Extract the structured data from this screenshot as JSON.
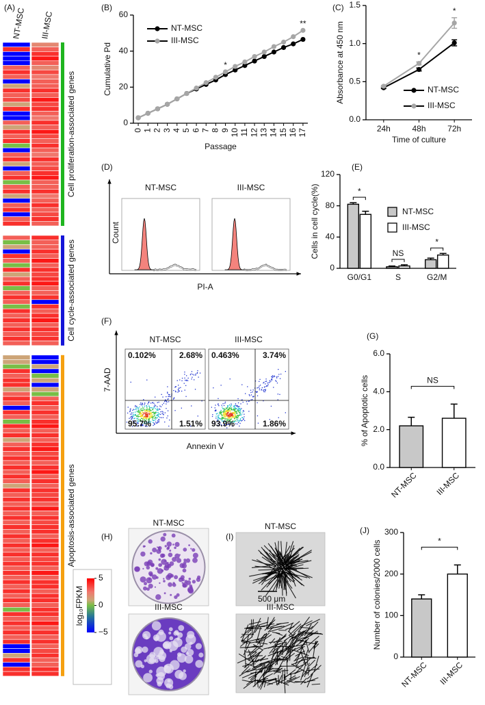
{
  "chart_data": [
    {
      "type": "heatmap",
      "label": "(A)",
      "columns": [
        "NT-MSC",
        "III-MSC"
      ],
      "zlim": [
        -5,
        5
      ],
      "colorbar_title": "log₁₀FPKM",
      "colorbar_ticks": [
        5,
        0,
        {
          "value": -5,
          "label": "−5"
        }
      ],
      "groups": [
        {
          "name": "Cell proliferation-associated genes",
          "color": "#1fb51f",
          "rows": [
            [
              -5,
              2
            ],
            [
              4,
              3
            ],
            [
              -5,
              4
            ],
            [
              -5,
              4.5
            ],
            [
              -5,
              3
            ],
            [
              3,
              2
            ],
            [
              4,
              3.5
            ],
            [
              3,
              2.5
            ],
            [
              -5,
              3
            ],
            [
              1,
              3
            ],
            [
              4,
              4
            ],
            [
              3,
              3
            ],
            [
              3.5,
              4.5
            ],
            [
              1,
              3.5
            ],
            [
              4,
              4
            ],
            [
              -5,
              3
            ],
            [
              -5,
              2.5
            ],
            [
              3,
              4
            ],
            [
              1,
              3
            ],
            [
              4,
              4.5
            ],
            [
              3,
              3.5
            ],
            [
              4,
              3
            ],
            [
              0,
              4
            ],
            [
              -5,
              3
            ],
            [
              3,
              2.5
            ],
            [
              4,
              4
            ],
            [
              1,
              3
            ],
            [
              -5,
              3.5
            ],
            [
              3,
              4
            ],
            [
              4,
              4.5
            ],
            [
              0,
              3
            ],
            [
              3,
              3
            ],
            [
              4,
              4
            ],
            [
              1,
              2.5
            ],
            [
              -5,
              3
            ],
            [
              3,
              4
            ],
            [
              4,
              3
            ],
            [
              -5,
              3.5
            ],
            [
              3,
              4
            ],
            [
              4,
              3
            ]
          ]
        },
        {
          "name": "Cell cycle-associated genes",
          "color": "#1414d8",
          "rows": [
            [
              3,
              4
            ],
            [
              0,
              3
            ],
            [
              1,
              3
            ],
            [
              -5,
              4
            ],
            [
              4,
              3
            ],
            [
              3,
              4.5
            ],
            [
              0,
              3
            ],
            [
              4,
              4
            ],
            [
              1,
              3.5
            ],
            [
              3,
              4
            ],
            [
              4,
              4.5
            ],
            [
              0,
              3
            ],
            [
              3,
              3
            ],
            [
              4,
              4
            ],
            [
              3,
              -5
            ],
            [
              0,
              4
            ],
            [
              4,
              3
            ],
            [
              3,
              4
            ],
            [
              4,
              4.5
            ],
            [
              3,
              3
            ],
            [
              4,
              4
            ],
            [
              3,
              3.5
            ],
            [
              4,
              4
            ],
            [
              3,
              3
            ]
          ]
        },
        {
          "name": "Apoptosis-associated genes",
          "color": "#f5a010",
          "rows": [
            [
              1,
              -5
            ],
            [
              1,
              -5
            ],
            [
              0,
              1
            ],
            [
              4,
              -5
            ],
            [
              3,
              0
            ],
            [
              4,
              1
            ],
            [
              4,
              -5
            ],
            [
              1,
              1
            ],
            [
              3,
              0
            ],
            [
              4,
              3
            ],
            [
              3,
              4
            ],
            [
              -5,
              3
            ],
            [
              4,
              4
            ],
            [
              3,
              3
            ],
            [
              0,
              4
            ],
            [
              4,
              4.5
            ],
            [
              3,
              3
            ],
            [
              4,
              4
            ],
            [
              1,
              3
            ],
            [
              3,
              4
            ],
            [
              4,
              4.5
            ],
            [
              3,
              3.5
            ],
            [
              4,
              4
            ],
            [
              3,
              3
            ],
            [
              4,
              4
            ],
            [
              3,
              4.5
            ],
            [
              4,
              3
            ],
            [
              3,
              4
            ],
            [
              1,
              3
            ],
            [
              4,
              4
            ],
            [
              3,
              3.5
            ],
            [
              4,
              4
            ],
            [
              3,
              3
            ],
            [
              4,
              4.5
            ],
            [
              3,
              3
            ],
            [
              4,
              4
            ],
            [
              3,
              3.5
            ],
            [
              4,
              4
            ],
            [
              3,
              4
            ],
            [
              4,
              3
            ],
            [
              3,
              4
            ],
            [
              4,
              4.5
            ],
            [
              3,
              3
            ],
            [
              4,
              4
            ],
            [
              3,
              3.5
            ],
            [
              4,
              4
            ],
            [
              3,
              3
            ],
            [
              4,
              4.5
            ],
            [
              3,
              3
            ],
            [
              4,
              4
            ],
            [
              3,
              4
            ],
            [
              4,
              3
            ],
            [
              3,
              4
            ],
            [
              4,
              4
            ],
            [
              3,
              3
            ],
            [
              0,
              4
            ],
            [
              4,
              4
            ],
            [
              3,
              3
            ],
            [
              4,
              4.5
            ],
            [
              3,
              3
            ],
            [
              4,
              4
            ],
            [
              3,
              3
            ],
            [
              4,
              4
            ],
            [
              -5,
              3
            ],
            [
              -5,
              3.5
            ],
            [
              1,
              4
            ],
            [
              4,
              3
            ],
            [
              -5,
              3
            ],
            [
              4,
              4
            ],
            [
              4,
              4
            ]
          ]
        }
      ]
    },
    {
      "type": "line",
      "label": "(B)",
      "ylabel": "Cumulative Pd",
      "xlabel": "Passage",
      "x": [
        0,
        1,
        2,
        3,
        4,
        5,
        6,
        7,
        8,
        9,
        10,
        11,
        12,
        13,
        14,
        15,
        16,
        17
      ],
      "xlim": [
        -0.5,
        17.5
      ],
      "xticks": [
        0,
        1,
        2,
        3,
        4,
        5,
        6,
        7,
        8,
        9,
        10,
        11,
        12,
        13,
        14,
        15,
        16,
        17
      ],
      "ylim": [
        0,
        60
      ],
      "yticks": [
        0,
        20,
        40,
        60
      ],
      "legend": "upper left",
      "series": [
        {
          "name": "NT-MSC",
          "color": "#000000",
          "values": [
            3,
            5.5,
            8,
            10.5,
            13.5,
            16.5,
            19,
            21.5,
            24,
            27,
            29.5,
            32,
            34.5,
            37,
            39.5,
            42,
            44,
            46.5
          ]
        },
        {
          "name": "III-MSC",
          "color": "#a6a6a6",
          "values": [
            3,
            5.5,
            8,
            10.5,
            13.5,
            16.5,
            19.5,
            22.5,
            25.5,
            28.5,
            31.5,
            34,
            37,
            39.5,
            42.5,
            45,
            48,
            51.5
          ]
        }
      ],
      "annotations": [
        {
          "text": "*",
          "x": 9
        },
        {
          "text": "**",
          "x": 17
        }
      ]
    },
    {
      "type": "line",
      "label": "(C)",
      "ylabel": "Absorbance at 450 nm",
      "xlabel": "Time of culture",
      "categories": [
        "24h",
        "48h",
        "72h"
      ],
      "ylim": [
        0,
        1.5
      ],
      "yticks": [
        {
          "value": 0,
          "label": "0.0"
        },
        0.5,
        {
          "value": 1,
          "label": "1.0"
        },
        1.5
      ],
      "legend": "lower right",
      "series": [
        {
          "name": "NT-MSC",
          "color": "#000000",
          "values": [
            0.42,
            0.66,
            1.01
          ],
          "errors": [
            0.01,
            0.02,
            0.04
          ]
        },
        {
          "name": "III-MSC",
          "color": "#a6a6a6",
          "values": [
            0.44,
            0.74,
            1.27
          ],
          "errors": [
            0.01,
            0.02,
            0.07
          ]
        }
      ],
      "annotations": [
        null,
        "*",
        "*"
      ]
    },
    {
      "type": "flow-histogram",
      "label": "(D)",
      "panels": [
        "NT-MSC",
        "III-MSC"
      ],
      "ylabel": "Count",
      "xlabel": "PI-A"
    },
    {
      "type": "bar",
      "label": "(E)",
      "ylabel": "Cells in cell cycle(%)",
      "categories": [
        "G0/G1",
        "S",
        "G2/M"
      ],
      "ylim": [
        0,
        120
      ],
      "yticks": [
        0,
        40,
        80,
        120
      ],
      "legend": "upper right",
      "series": [
        {
          "name": "NT-MSC",
          "color": "#c8c8c8",
          "values": [
            82,
            2,
            11
          ],
          "errors": [
            2,
            1,
            2
          ]
        },
        {
          "name": "III-MSC",
          "color": "#ffffff",
          "values": [
            69,
            3,
            17
          ],
          "errors": [
            4,
            1.5,
            2
          ]
        }
      ],
      "brackets": [
        "*",
        "NS",
        "*"
      ]
    },
    {
      "type": "flow-scatter",
      "label": "(F)",
      "ylabel": "7-AAD",
      "xlabel": "Annexin V",
      "panels": [
        {
          "title": "NT-MSC",
          "quadrants": [
            "0.102%",
            "2.68%",
            "95.7%",
            "1.51%"
          ]
        },
        {
          "title": "III-MSC",
          "quadrants": [
            "0.463%",
            "3.74%",
            "93.9%",
            "1.86%"
          ]
        }
      ]
    },
    {
      "type": "bar",
      "label": "(G)",
      "ylabel": "% of Apoptotic cells",
      "categories": [
        "NT-MSC",
        "III-MSC"
      ],
      "values": [
        2.2,
        2.6
      ],
      "errors": [
        0.45,
        0.75
      ],
      "colors": [
        "#c8c8c8",
        "#ffffff"
      ],
      "ylim": [
        0,
        6
      ],
      "yticks": [
        {
          "value": 0,
          "label": "0.0"
        },
        {
          "value": 2,
          "label": "2.0"
        },
        {
          "value": 4,
          "label": "4.0"
        },
        {
          "value": 6,
          "label": "6.0"
        }
      ],
      "comparison": "NS"
    },
    {
      "type": "dish-image",
      "label": "(H)",
      "panels": [
        "NT-MSC",
        "III-MSC"
      ]
    },
    {
      "type": "cell-image",
      "label": "(I)",
      "panels": [
        "NT-MSC",
        "III-MSC"
      ],
      "scale_bar": "500 μm"
    },
    {
      "type": "bar",
      "label": "(J)",
      "ylabel": "Number of colonies/2000 cells",
      "categories": [
        "NT-MSC",
        "III-MSC"
      ],
      "values": [
        140,
        200
      ],
      "errors": [
        10,
        22
      ],
      "colors": [
        "#c8c8c8",
        "#ffffff"
      ],
      "ylim": [
        0,
        300
      ],
      "yticks": [
        0,
        100,
        200,
        300
      ],
      "comparison": "*"
    }
  ]
}
